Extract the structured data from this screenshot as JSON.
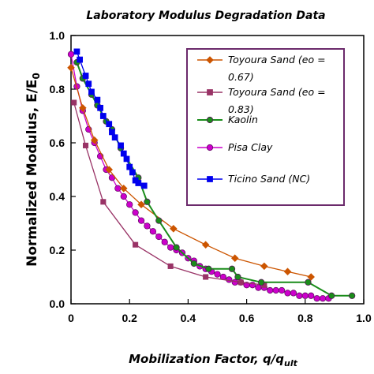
{
  "chart_data": {
    "type": "line",
    "title": "Laboratory Modulus Degradation Data",
    "xlabel": "Mobilization Factor, q/q",
    "xlabel_sub": "ult",
    "ylabel": "Normalized Modulus,  E/E",
    "ylabel_sub": "0",
    "xlim": [
      0,
      1.0
    ],
    "ylim": [
      0,
      1.0
    ],
    "x_ticks": [
      "0",
      "0.2",
      "0.4",
      "0.6",
      "0.8",
      "1.0"
    ],
    "y_ticks": [
      "0.0",
      "0.2",
      "0.4",
      "0.6",
      "0.8",
      "1.0"
    ],
    "grid": false,
    "legend_position": "top-right",
    "series": [
      {
        "name": "Toyoura Sand (eo = 0.67)",
        "legend_lines": [
          "Toyoura Sand (eo =",
          "0.67)"
        ],
        "color": "#cc5500",
        "marker": "diamond",
        "x": [
          0.0,
          0.04,
          0.08,
          0.13,
          0.18,
          0.24,
          0.35,
          0.46,
          0.56,
          0.66,
          0.74,
          0.82
        ],
        "y": [
          0.88,
          0.73,
          0.61,
          0.5,
          0.43,
          0.37,
          0.28,
          0.22,
          0.17,
          0.14,
          0.12,
          0.1
        ]
      },
      {
        "name": "Toyoura Sand (eo = 0.83)",
        "legend_lines": [
          "Toyoura Sand (eo =",
          "0.83)"
        ],
        "color": "#993366",
        "marker": "square",
        "x": [
          0.01,
          0.05,
          0.11,
          0.22,
          0.34,
          0.46,
          0.58,
          0.66
        ],
        "y": [
          0.75,
          0.59,
          0.38,
          0.22,
          0.14,
          0.1,
          0.08,
          0.07
        ]
      },
      {
        "name": "Kaolin",
        "legend_lines": [
          "Kaolin"
        ],
        "color": "#1a8c1a",
        "marker": "circle",
        "x": [
          0.02,
          0.04,
          0.07,
          0.09,
          0.12,
          0.14,
          0.17,
          0.23,
          0.26,
          0.3,
          0.36,
          0.42,
          0.47,
          0.55,
          0.57,
          0.65,
          0.81,
          0.89,
          0.96
        ],
        "y": [
          0.9,
          0.84,
          0.78,
          0.74,
          0.68,
          0.65,
          0.58,
          0.47,
          0.38,
          0.31,
          0.21,
          0.15,
          0.13,
          0.13,
          0.1,
          0.08,
          0.08,
          0.03,
          0.03
        ]
      },
      {
        "name": "Pisa Clay",
        "legend_lines": [
          "Pisa Clay"
        ],
        "color": "#cc00cc",
        "marker": "circle",
        "x": [
          0.0,
          0.02,
          0.04,
          0.06,
          0.08,
          0.1,
          0.12,
          0.14,
          0.16,
          0.18,
          0.2,
          0.22,
          0.24,
          0.26,
          0.28,
          0.3,
          0.32,
          0.34,
          0.36,
          0.38,
          0.4,
          0.42,
          0.44,
          0.46,
          0.48,
          0.5,
          0.52,
          0.54,
          0.56,
          0.58,
          0.6,
          0.62,
          0.64,
          0.66,
          0.68,
          0.7,
          0.72,
          0.74,
          0.76,
          0.78,
          0.8,
          0.82,
          0.84,
          0.86,
          0.88
        ],
        "y": [
          0.93,
          0.81,
          0.72,
          0.65,
          0.6,
          0.55,
          0.5,
          0.47,
          0.43,
          0.4,
          0.37,
          0.34,
          0.31,
          0.29,
          0.27,
          0.25,
          0.23,
          0.21,
          0.2,
          0.19,
          0.17,
          0.16,
          0.14,
          0.13,
          0.12,
          0.11,
          0.1,
          0.09,
          0.08,
          0.08,
          0.07,
          0.07,
          0.06,
          0.06,
          0.05,
          0.05,
          0.05,
          0.04,
          0.04,
          0.03,
          0.03,
          0.03,
          0.02,
          0.02,
          0.02
        ]
      },
      {
        "name": "Ticino Sand (NC)",
        "legend_lines": [
          "Ticino Sand (NC)"
        ],
        "color": "#0000ee",
        "marker": "square",
        "x": [
          0.02,
          0.03,
          0.05,
          0.06,
          0.07,
          0.09,
          0.1,
          0.11,
          0.13,
          0.14,
          0.15,
          0.17,
          0.18,
          0.19,
          0.2,
          0.21,
          0.22,
          0.23,
          0.25
        ],
        "y": [
          0.94,
          0.91,
          0.85,
          0.82,
          0.79,
          0.76,
          0.73,
          0.7,
          0.67,
          0.64,
          0.62,
          0.59,
          0.56,
          0.54,
          0.51,
          0.49,
          0.46,
          0.45,
          0.44
        ]
      }
    ]
  }
}
